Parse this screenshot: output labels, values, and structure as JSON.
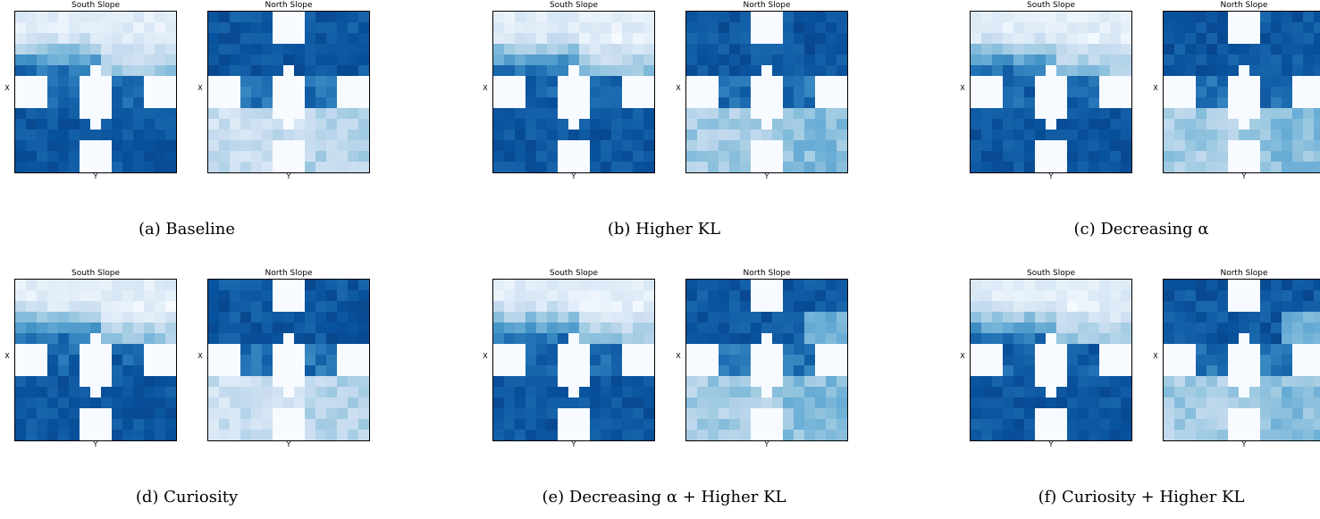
{
  "chart_data": [
    {
      "type": "heatmap",
      "caption": "(a) Baseline",
      "panels": [
        {
          "title": "South Slope",
          "xlabel": "Y",
          "ylabel": "X"
        },
        {
          "title": "North Slope",
          "xlabel": "Y",
          "ylabel": "X"
        }
      ]
    },
    {
      "type": "heatmap",
      "caption": "(b) Higher KL",
      "panels": [
        {
          "title": "South Slope",
          "xlabel": "Y",
          "ylabel": "X"
        },
        {
          "title": "North Slope",
          "xlabel": "Y",
          "ylabel": "X"
        }
      ]
    },
    {
      "type": "heatmap",
      "caption": "(c) Decreasing α",
      "panels": [
        {
          "title": "South Slope",
          "xlabel": "Y",
          "ylabel": "X"
        },
        {
          "title": "North Slope",
          "xlabel": "Y",
          "ylabel": "X"
        }
      ]
    },
    {
      "type": "heatmap",
      "caption": "(d) Curiosity",
      "panels": [
        {
          "title": "South Slope",
          "xlabel": "Y",
          "ylabel": "X"
        },
        {
          "title": "North Slope",
          "xlabel": "Y",
          "ylabel": "X"
        }
      ]
    },
    {
      "type": "heatmap",
      "caption": "(e) Decreasing α + Higher KL",
      "panels": [
        {
          "title": "South Slope",
          "xlabel": "Y",
          "ylabel": "X"
        },
        {
          "title": "North Slope",
          "xlabel": "Y",
          "ylabel": "X"
        }
      ]
    },
    {
      "type": "heatmap",
      "caption": "(f) Curiosity + Higher KL",
      "panels": [
        {
          "title": "South Slope",
          "xlabel": "Y",
          "ylabel": "X"
        },
        {
          "title": "North Slope",
          "xlabel": "Y",
          "ylabel": "X"
        }
      ]
    }
  ],
  "colormap": {
    "name": "Blues",
    "low": "#f7fbff",
    "high": "#08306b"
  }
}
